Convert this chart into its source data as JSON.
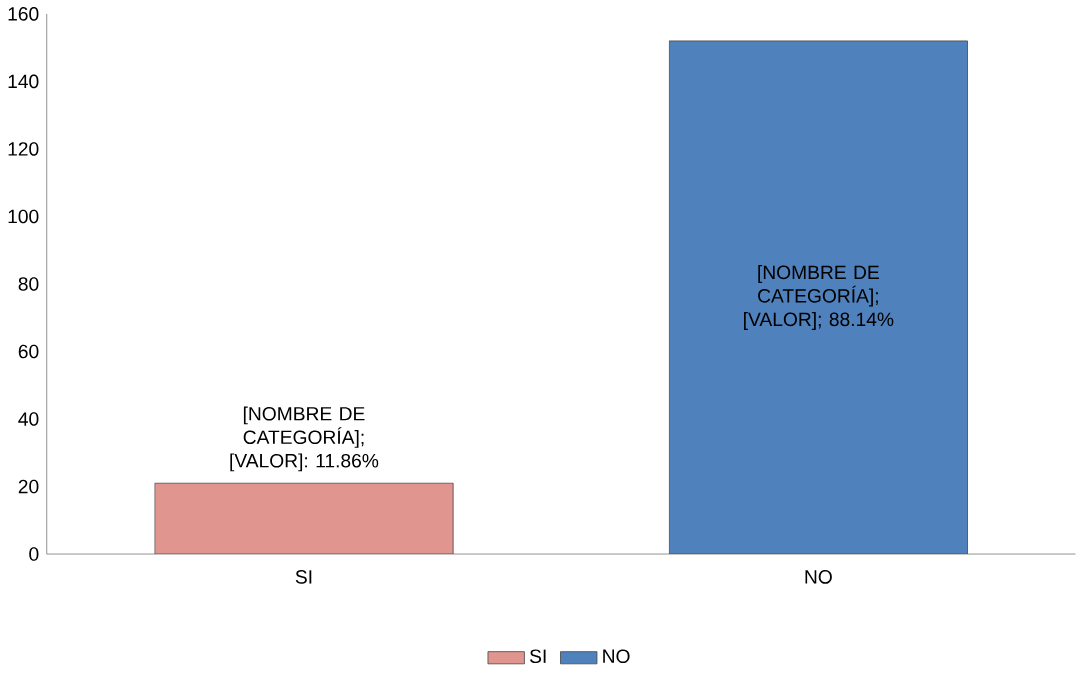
{
  "chart_data": {
    "type": "bar",
    "categories": [
      "SI",
      "NO"
    ],
    "series": [
      {
        "name": "SI",
        "color": "#e0958f",
        "values": [
          21,
          null
        ]
      },
      {
        "name": "NO",
        "color": "#4f81bd",
        "values": [
          null,
          152
        ]
      }
    ],
    "annotations": [
      "[NOMBRE DE CATEGORÍA]; [VALOR]: 11.86%",
      "[NOMBRE DE CATEGORÍA]; [VALOR]; 88.14%"
    ],
    "ylim": [
      0,
      160
    ],
    "yticks": [
      0,
      20,
      40,
      60,
      80,
      100,
      120,
      140,
      160
    ],
    "legend": "bottom",
    "grid": false
  }
}
